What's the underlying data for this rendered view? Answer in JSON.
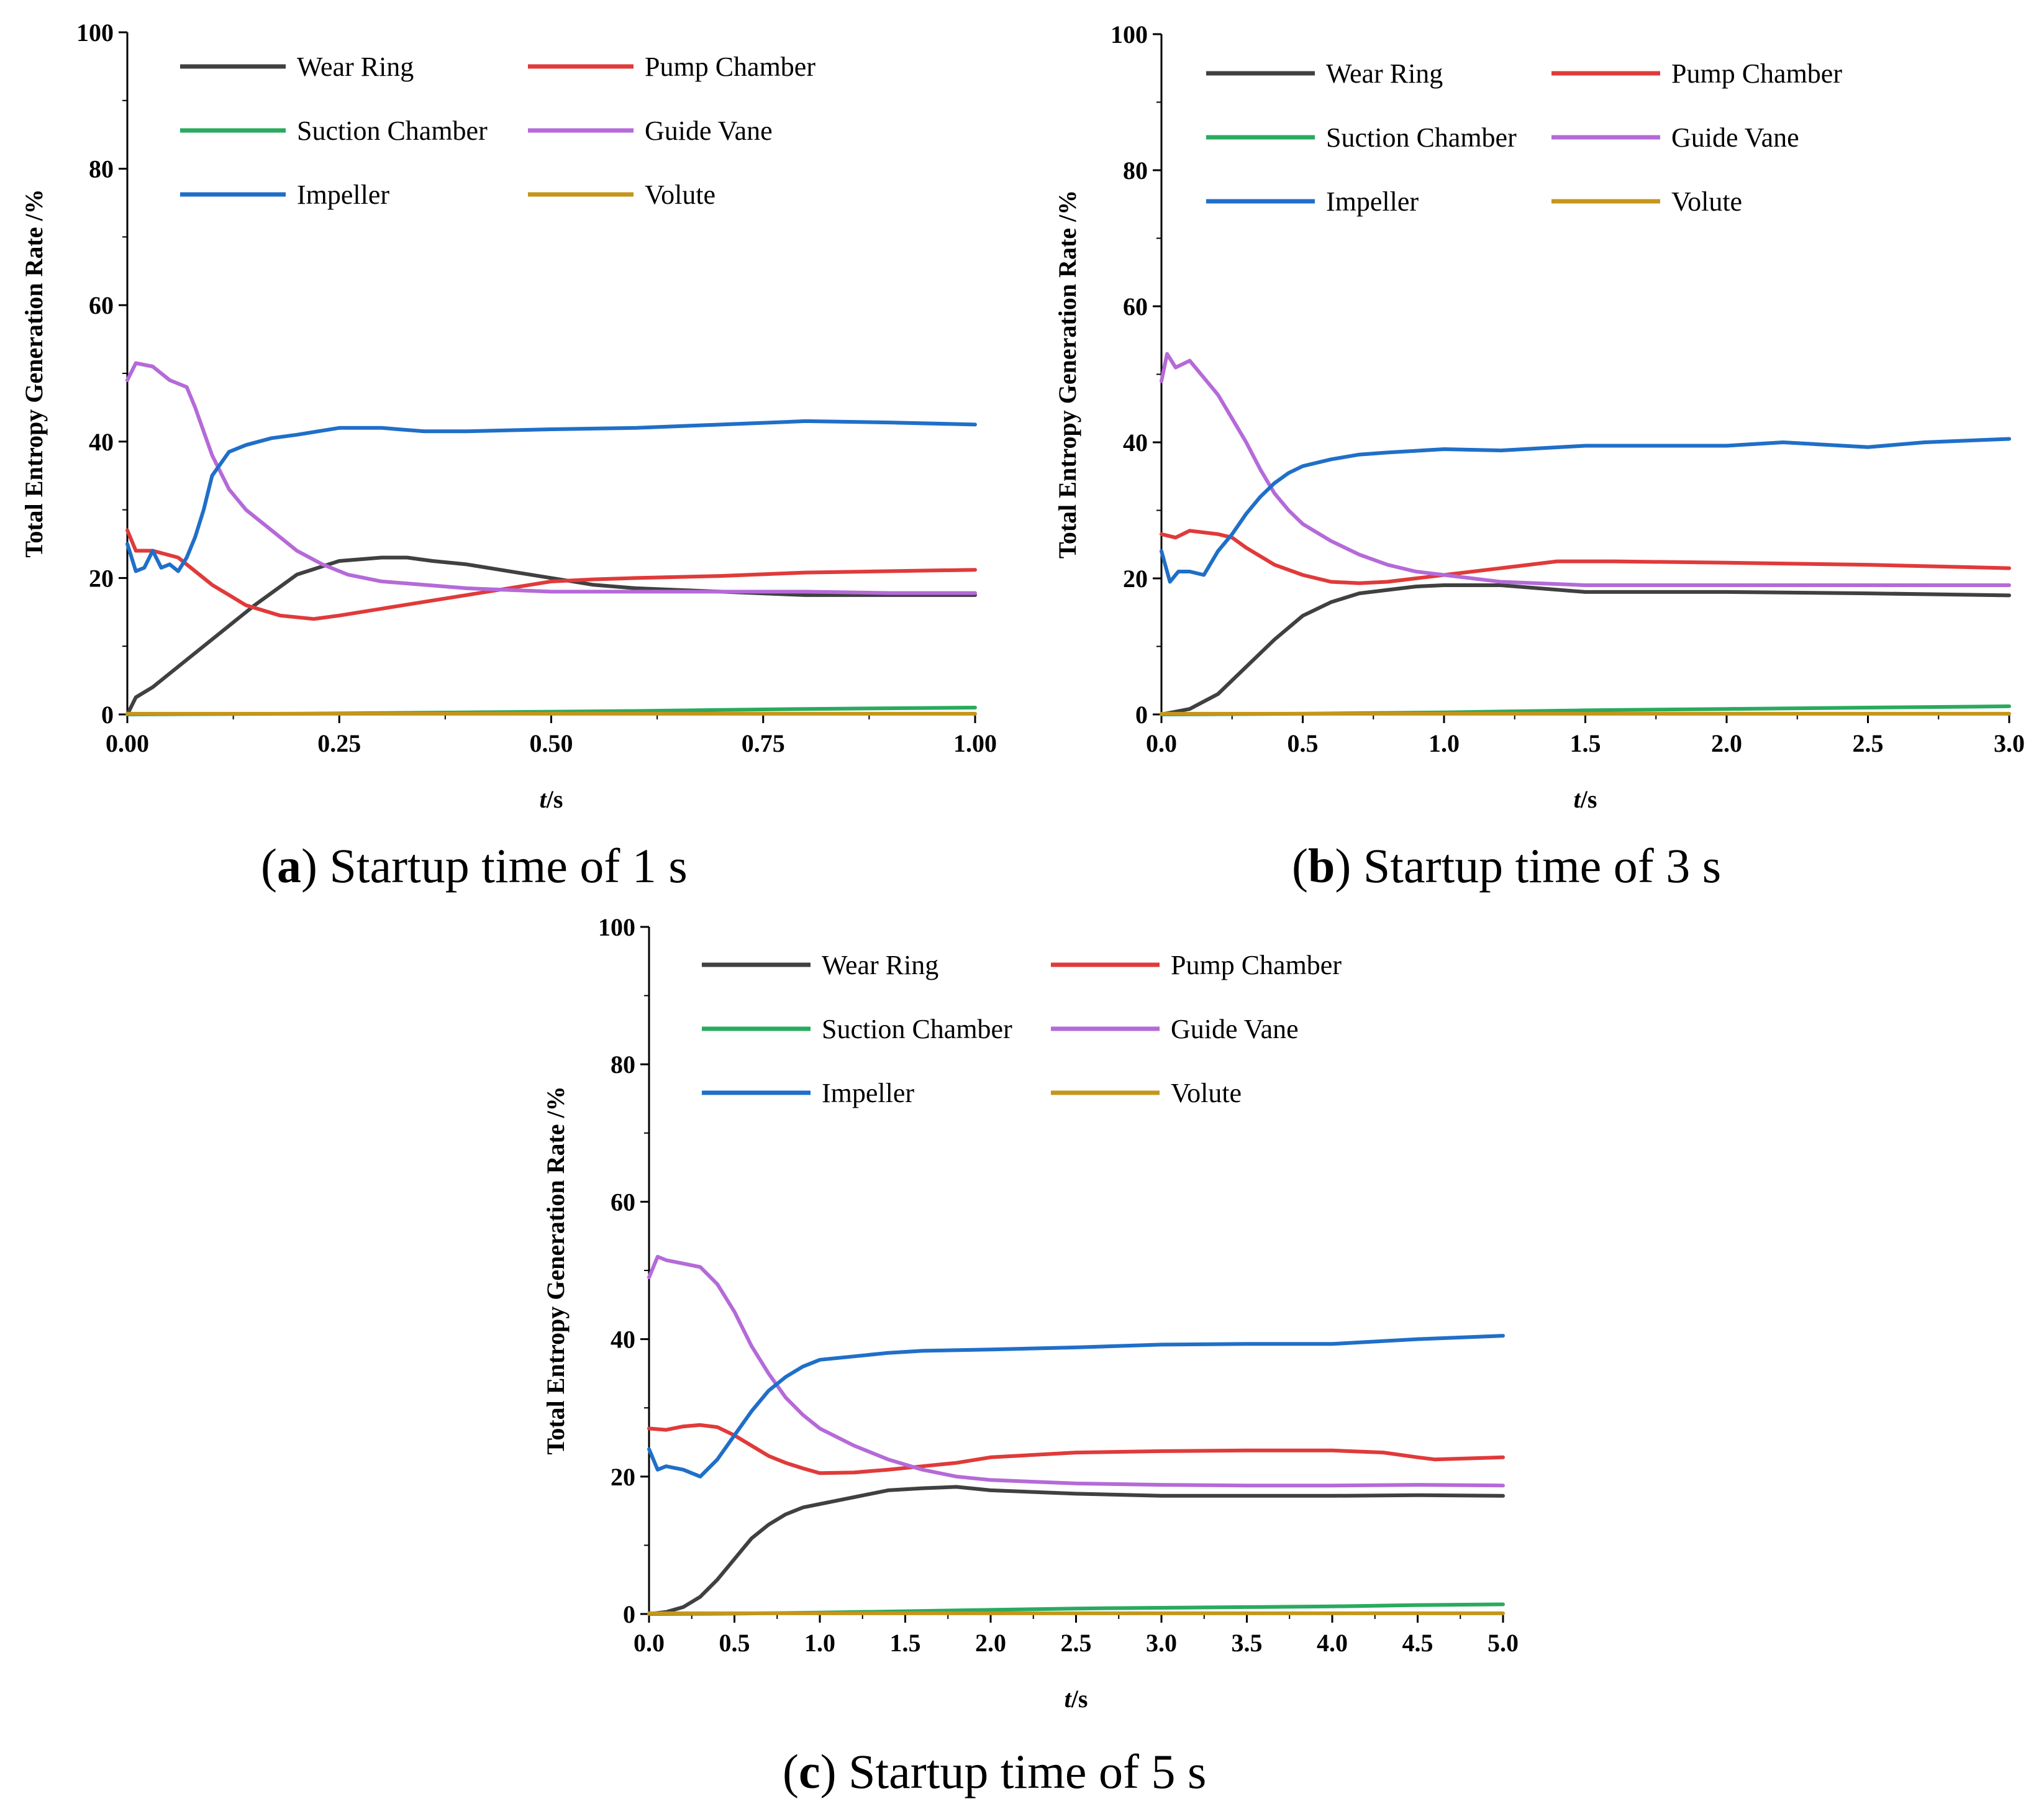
{
  "colors": {
    "wear_ring": "#404040",
    "pump_chamber": "#e03a3a",
    "suction_chamber": "#2aaa5e",
    "guide_vane": "#b56ad8",
    "impeller": "#1f6fc8",
    "volute": "#c4961a"
  },
  "chart_data": [
    {
      "type": "line",
      "caption_letter": "a",
      "caption_text": ") Startup time of 1 s",
      "ylabel": "Total Entropy Generation Rate /%",
      "xlabel_italic": "t",
      "xlabel_unit": "/s",
      "xlim": [
        0,
        1
      ],
      "ylim": [
        0,
        100
      ],
      "xticks": [
        "0.00",
        "0.25",
        "0.50",
        "0.75",
        "1.00"
      ],
      "yticks": [
        "0",
        "20",
        "40",
        "60",
        "80",
        "100"
      ],
      "legend_position": "top",
      "series": [
        {
          "name": "Wear Ring",
          "color_key": "wear_ring",
          "x": [
            0,
            0.01,
            0.03,
            0.06,
            0.1,
            0.15,
            0.2,
            0.25,
            0.3,
            0.33,
            0.36,
            0.4,
            0.45,
            0.5,
            0.55,
            0.6,
            0.7,
            0.8,
            0.9,
            1.0
          ],
          "y": [
            0,
            2.5,
            4,
            7,
            11,
            16,
            20.5,
            22.5,
            23,
            23,
            22.5,
            22,
            21,
            20,
            19,
            18.5,
            18,
            17.5,
            17.5,
            17.5
          ]
        },
        {
          "name": "Pump Chamber",
          "color_key": "pump_chamber",
          "x": [
            0,
            0.01,
            0.03,
            0.06,
            0.1,
            0.14,
            0.18,
            0.22,
            0.25,
            0.3,
            0.35,
            0.4,
            0.45,
            0.5,
            0.55,
            0.6,
            0.7,
            0.8,
            0.9,
            1.0
          ],
          "y": [
            27,
            24,
            24,
            23,
            19,
            16,
            14.5,
            14,
            14.5,
            15.5,
            16.5,
            17.5,
            18.5,
            19.5,
            19.8,
            20,
            20.3,
            20.8,
            21,
            21.2
          ]
        },
        {
          "name": "Suction Chamber",
          "color_key": "suction_chamber",
          "x": [
            0,
            0.2,
            0.4,
            0.6,
            0.8,
            1.0
          ],
          "y": [
            0,
            0.1,
            0.3,
            0.5,
            0.8,
            1.0
          ]
        },
        {
          "name": "Guide Vane",
          "color_key": "guide_vane",
          "x": [
            0,
            0.01,
            0.03,
            0.05,
            0.07,
            0.08,
            0.1,
            0.12,
            0.14,
            0.17,
            0.2,
            0.23,
            0.26,
            0.3,
            0.35,
            0.4,
            0.5,
            0.6,
            0.7,
            0.8,
            0.9,
            1.0
          ],
          "y": [
            49,
            51.5,
            51,
            49,
            48,
            45,
            38,
            33,
            30,
            27,
            24,
            22,
            20.5,
            19.5,
            19,
            18.5,
            18,
            18,
            18,
            18,
            17.8,
            17.8
          ]
        },
        {
          "name": "Impeller",
          "color_key": "impeller",
          "x": [
            0,
            0.01,
            0.02,
            0.03,
            0.04,
            0.05,
            0.06,
            0.07,
            0.08,
            0.09,
            0.1,
            0.12,
            0.14,
            0.17,
            0.2,
            0.25,
            0.3,
            0.35,
            0.4,
            0.5,
            0.6,
            0.7,
            0.8,
            0.9,
            1.0
          ],
          "y": [
            25,
            21,
            21.5,
            24,
            21.5,
            22,
            21,
            23,
            26,
            30,
            35,
            38.5,
            39.5,
            40.5,
            41,
            42,
            42,
            41.5,
            41.5,
            41.8,
            42,
            42.5,
            43,
            42.8,
            42.5
          ]
        },
        {
          "name": "Volute",
          "color_key": "volute",
          "x": [
            0,
            0.5,
            1.0
          ],
          "y": [
            0.1,
            0.1,
            0.1
          ]
        }
      ]
    },
    {
      "type": "line",
      "caption_letter": "b",
      "caption_text": ") Startup time of 3 s",
      "ylabel": "Total Entropy Generation Rate /%",
      "xlabel_italic": "t",
      "xlabel_unit": "/s",
      "xlim": [
        0,
        3
      ],
      "ylim": [
        0,
        100
      ],
      "xticks": [
        "0.0",
        "0.5",
        "1.0",
        "1.5",
        "2.0",
        "2.5",
        "3.0"
      ],
      "yticks": [
        "0",
        "20",
        "40",
        "60",
        "80",
        "100"
      ],
      "legend_position": "top",
      "series": [
        {
          "name": "Wear Ring",
          "color_key": "wear_ring",
          "x": [
            0,
            0.1,
            0.2,
            0.3,
            0.4,
            0.5,
            0.6,
            0.7,
            0.8,
            0.9,
            1.0,
            1.2,
            1.5,
            2.0,
            2.5,
            3.0
          ],
          "y": [
            0,
            0.8,
            3,
            7,
            11,
            14.5,
            16.5,
            17.8,
            18.3,
            18.8,
            19,
            19,
            18,
            18,
            17.8,
            17.5
          ]
        },
        {
          "name": "Pump Chamber",
          "color_key": "pump_chamber",
          "x": [
            0,
            0.05,
            0.1,
            0.2,
            0.25,
            0.3,
            0.4,
            0.5,
            0.6,
            0.7,
            0.8,
            0.9,
            1.0,
            1.2,
            1.4,
            1.6,
            2.0,
            2.5,
            3.0
          ],
          "y": [
            26.5,
            26,
            27,
            26.5,
            26,
            24.5,
            22,
            20.5,
            19.5,
            19.3,
            19.5,
            20,
            20.5,
            21.5,
            22.5,
            22.5,
            22.3,
            22,
            21.5
          ]
        },
        {
          "name": "Suction Chamber",
          "color_key": "suction_chamber",
          "x": [
            0,
            0.5,
            1.0,
            1.5,
            2.0,
            2.5,
            3.0
          ],
          "y": [
            0,
            0.1,
            0.3,
            0.6,
            0.8,
            1.0,
            1.2
          ]
        },
        {
          "name": "Guide Vane",
          "color_key": "guide_vane",
          "x": [
            0,
            0.02,
            0.05,
            0.1,
            0.15,
            0.2,
            0.25,
            0.3,
            0.35,
            0.4,
            0.45,
            0.5,
            0.6,
            0.7,
            0.8,
            0.9,
            1.0,
            1.2,
            1.5,
            2.0,
            2.5,
            3.0
          ],
          "y": [
            49,
            53,
            51,
            52,
            49.5,
            47,
            43.5,
            40,
            36,
            32.5,
            30,
            28,
            25.5,
            23.5,
            22,
            21,
            20.5,
            19.5,
            19,
            19,
            19,
            19
          ]
        },
        {
          "name": "Impeller",
          "color_key": "impeller",
          "x": [
            0,
            0.03,
            0.06,
            0.1,
            0.15,
            0.2,
            0.25,
            0.3,
            0.35,
            0.4,
            0.45,
            0.5,
            0.6,
            0.7,
            0.8,
            1.0,
            1.2,
            1.5,
            2.0,
            2.2,
            2.5,
            2.7,
            3.0
          ],
          "y": [
            24,
            19.5,
            21,
            21,
            20.5,
            24,
            26.5,
            29.5,
            32,
            34,
            35.5,
            36.5,
            37.5,
            38.2,
            38.5,
            39,
            38.8,
            39.5,
            39.5,
            40,
            39.3,
            40,
            40.5
          ]
        },
        {
          "name": "Volute",
          "color_key": "volute",
          "x": [
            0,
            1.5,
            3.0
          ],
          "y": [
            0.1,
            0.1,
            0.1
          ]
        }
      ]
    },
    {
      "type": "line",
      "caption_letter": "c",
      "caption_text": ") Startup time of 5 s",
      "ylabel": "Total Entropy Generation Rate /%",
      "xlabel_italic": "t",
      "xlabel_unit": "/s",
      "xlim": [
        0,
        5
      ],
      "ylim": [
        0,
        100
      ],
      "xticks": [
        "0.0",
        "0.5",
        "1.0",
        "1.5",
        "2.0",
        "2.5",
        "3.0",
        "3.5",
        "4.0",
        "4.5",
        "5.0"
      ],
      "yticks": [
        "0",
        "20",
        "40",
        "60",
        "80",
        "100"
      ],
      "legend_position": "top",
      "series": [
        {
          "name": "Wear Ring",
          "color_key": "wear_ring",
          "x": [
            0,
            0.1,
            0.2,
            0.3,
            0.4,
            0.5,
            0.6,
            0.7,
            0.8,
            0.9,
            1.0,
            1.2,
            1.4,
            1.6,
            1.8,
            2.0,
            2.5,
            3.0,
            3.5,
            4.0,
            4.5,
            5.0
          ],
          "y": [
            0,
            0.3,
            1,
            2.5,
            5,
            8,
            11,
            13,
            14.5,
            15.5,
            16,
            17,
            18,
            18.3,
            18.5,
            18,
            17.5,
            17.2,
            17.2,
            17.2,
            17.3,
            17.2
          ]
        },
        {
          "name": "Pump Chamber",
          "color_key": "pump_chamber",
          "x": [
            0,
            0.1,
            0.2,
            0.3,
            0.4,
            0.5,
            0.6,
            0.7,
            0.8,
            0.9,
            1.0,
            1.2,
            1.4,
            1.6,
            1.8,
            2.0,
            2.5,
            3.0,
            3.5,
            4.0,
            4.3,
            4.5,
            4.6,
            5.0
          ],
          "y": [
            27,
            26.8,
            27.3,
            27.5,
            27.2,
            26,
            24.5,
            23,
            22,
            21.2,
            20.5,
            20.6,
            21,
            21.5,
            22,
            22.8,
            23.5,
            23.7,
            23.8,
            23.8,
            23.5,
            22.8,
            22.5,
            22.8
          ]
        },
        {
          "name": "Suction Chamber",
          "color_key": "suction_chamber",
          "x": [
            0,
            0.5,
            1.0,
            1.5,
            2.0,
            2.5,
            3.0,
            3.5,
            4.0,
            4.5,
            5.0
          ],
          "y": [
            0,
            0.05,
            0.2,
            0.4,
            0.6,
            0.8,
            0.9,
            1.0,
            1.1,
            1.3,
            1.4
          ]
        },
        {
          "name": "Guide Vane",
          "color_key": "guide_vane",
          "x": [
            0,
            0.05,
            0.1,
            0.2,
            0.3,
            0.4,
            0.5,
            0.6,
            0.7,
            0.8,
            0.9,
            1.0,
            1.2,
            1.4,
            1.6,
            1.8,
            2.0,
            2.5,
            3.0,
            3.5,
            4.0,
            4.5,
            5.0
          ],
          "y": [
            49,
            52,
            51.5,
            51,
            50.5,
            48,
            44,
            39,
            35,
            31.5,
            29,
            27,
            24.5,
            22.5,
            21,
            20,
            19.5,
            19,
            18.8,
            18.7,
            18.7,
            18.8,
            18.7
          ]
        },
        {
          "name": "Impeller",
          "color_key": "impeller",
          "x": [
            0,
            0.05,
            0.1,
            0.2,
            0.3,
            0.4,
            0.5,
            0.6,
            0.7,
            0.8,
            0.9,
            1.0,
            1.2,
            1.4,
            1.6,
            2.0,
            2.5,
            3.0,
            3.5,
            4.0,
            4.5,
            5.0
          ],
          "y": [
            24,
            21,
            21.5,
            21,
            20,
            22.5,
            26,
            29.5,
            32.5,
            34.5,
            36,
            37,
            37.5,
            38,
            38.3,
            38.5,
            38.8,
            39.2,
            39.3,
            39.3,
            40,
            40.5
          ]
        },
        {
          "name": "Volute",
          "color_key": "volute",
          "x": [
            0,
            2.5,
            5.0
          ],
          "y": [
            0.1,
            0.1,
            0.1
          ]
        }
      ]
    }
  ]
}
